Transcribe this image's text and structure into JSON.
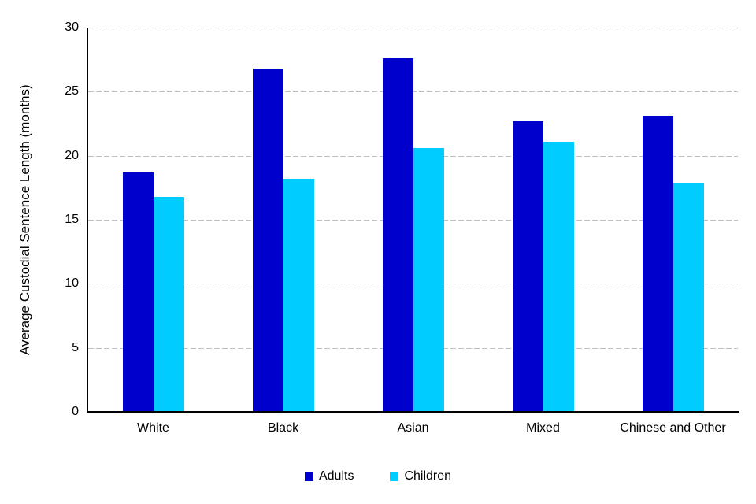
{
  "page": {
    "background": "#FFFFFF"
  },
  "chart_data": {
    "type": "bar",
    "title": "",
    "xlabel": "",
    "ylabel": "Average Custodial Sentence Length (months)",
    "categories": [
      "White",
      "Black",
      "Asian",
      "Mixed",
      "Chinese and Other"
    ],
    "series": [
      {
        "name": "Adults",
        "color": "#0000CD",
        "values": [
          18.7,
          26.8,
          27.6,
          22.7,
          23.1
        ]
      },
      {
        "name": "Children",
        "color": "#00CCFF",
        "values": [
          16.8,
          18.2,
          20.6,
          21.1,
          17.9
        ]
      }
    ],
    "ylim": [
      0,
      30
    ],
    "yticks": [
      0,
      5,
      10,
      15,
      20,
      25,
      30
    ],
    "grid": "horizontal-dashed",
    "gridline_color": "#BFBFBF",
    "axis_color": "#000000",
    "legend_position": "bottom"
  }
}
